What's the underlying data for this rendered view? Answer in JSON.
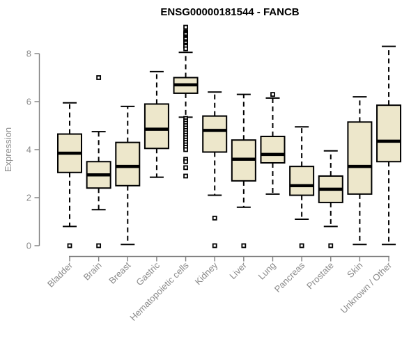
{
  "chart_data": {
    "type": "boxplot",
    "title": "ENSG00000181544 - FANCB",
    "ylabel": "Expression",
    "xlabel": "",
    "ylim": [
      0,
      8
    ],
    "yticks": [
      0,
      2,
      4,
      6,
      8
    ],
    "grid": false,
    "legend": "none",
    "categories": [
      "Bladder",
      "Brain",
      "Breast",
      "Gastric",
      "Hematopoietic cells",
      "Kidney",
      "Liver",
      "Lung",
      "Pancreas",
      "Prostate",
      "Skin",
      "Unknown / Other"
    ],
    "series": [
      {
        "name": "Bladder",
        "whisker_low": 0.8,
        "q1": 3.05,
        "median": 3.85,
        "q3": 4.65,
        "whisker_high": 5.95,
        "outliers": [
          0
        ]
      },
      {
        "name": "Brain",
        "whisker_low": 1.5,
        "q1": 2.4,
        "median": 2.95,
        "q3": 3.5,
        "whisker_high": 4.75,
        "outliers": [
          7.0,
          0
        ]
      },
      {
        "name": "Breast",
        "whisker_low": 0.05,
        "q1": 2.5,
        "median": 3.3,
        "q3": 4.3,
        "whisker_high": 5.8,
        "outliers": []
      },
      {
        "name": "Gastric",
        "whisker_low": 2.85,
        "q1": 4.05,
        "median": 4.85,
        "q3": 5.9,
        "whisker_high": 7.25,
        "outliers": []
      },
      {
        "name": "Hematopoietic cells",
        "whisker_low": 5.35,
        "q1": 6.35,
        "median": 6.7,
        "q3": 7.0,
        "whisker_high": 8.05,
        "outliers": [
          9.1,
          8.9,
          8.85,
          8.8,
          8.7,
          8.65,
          8.6,
          8.5,
          8.45,
          8.35,
          8.3,
          8.2,
          5.3,
          5.2,
          5.1,
          5.0,
          4.9,
          4.8,
          4.7,
          4.6,
          4.5,
          4.4,
          4.3,
          4.2,
          4.1,
          4.0,
          3.6,
          3.5,
          3.25,
          2.9
        ]
      },
      {
        "name": "Kidney",
        "whisker_low": 2.1,
        "q1": 3.9,
        "median": 4.8,
        "q3": 5.4,
        "whisker_high": 6.4,
        "outliers": [
          1.15,
          0
        ]
      },
      {
        "name": "Liver",
        "whisker_low": 1.6,
        "q1": 2.7,
        "median": 3.6,
        "q3": 4.4,
        "whisker_high": 6.3,
        "outliers": [
          0
        ]
      },
      {
        "name": "Lung",
        "whisker_low": 2.15,
        "q1": 3.45,
        "median": 3.8,
        "q3": 4.55,
        "whisker_high": 6.15,
        "outliers": [
          6.3
        ]
      },
      {
        "name": "Pancreas",
        "whisker_low": 1.1,
        "q1": 2.1,
        "median": 2.5,
        "q3": 3.3,
        "whisker_high": 4.95,
        "outliers": [
          0
        ]
      },
      {
        "name": "Prostate",
        "whisker_low": 0.8,
        "q1": 1.8,
        "median": 2.35,
        "q3": 2.9,
        "whisker_high": 3.95,
        "outliers": [
          0
        ]
      },
      {
        "name": "Skin",
        "whisker_low": 0.05,
        "q1": 2.15,
        "median": 3.3,
        "q3": 5.15,
        "whisker_high": 6.2,
        "outliers": []
      },
      {
        "name": "Unknown / Other",
        "whisker_low": 0.05,
        "q1": 3.5,
        "median": 4.35,
        "q3": 5.85,
        "whisker_high": 8.3,
        "outliers": []
      }
    ],
    "colors": {
      "box_fill": "#EDE7CB",
      "box_stroke": "#000000",
      "median": "#000000",
      "whisker": "#000000",
      "outlier_stroke": "#000000",
      "outlier_fill": "#FFFFFF",
      "axis": "#808080",
      "tick_label": "#8A8A8A",
      "title": "#000000",
      "background": "#FFFFFF"
    }
  }
}
